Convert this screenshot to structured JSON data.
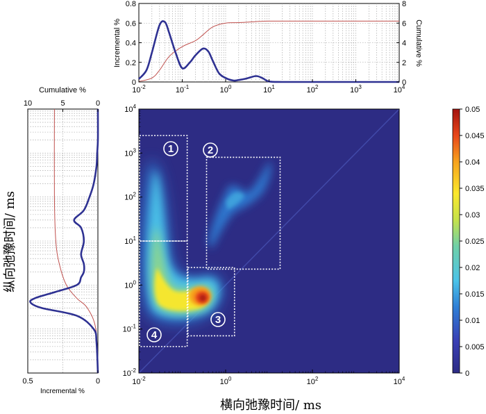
{
  "chart_data": {
    "type": "heatmap",
    "xlabel": "横向弛豫时间/ ms",
    "ylabel": "纵向弛豫时间/ ms",
    "x_scale": "log",
    "y_scale": "log",
    "xlim": [
      0.01,
      10000
    ],
    "ylim": [
      0.01,
      10000
    ],
    "x_ticks": [
      "10^-2",
      "10^0",
      "10^2",
      "10^4"
    ],
    "y_ticks": [
      "10^-2",
      "10^-1",
      "10^0",
      "10^1",
      "10^2",
      "10^3",
      "10^4"
    ],
    "colorbar": {
      "min": 0,
      "max": 0.05,
      "ticks": [
        "0",
        "0.005",
        "0.01",
        "0.015",
        "0.02",
        "0.025",
        "0.03",
        "0.035",
        "0.04",
        "0.045",
        "0.05"
      ]
    },
    "regions": [
      {
        "label": "1",
        "x_range": [
          0.01,
          0.13
        ],
        "y_range": [
          10,
          2500
        ]
      },
      {
        "label": "2",
        "x_range": [
          0.35,
          18
        ],
        "y_range": [
          2.3,
          800
        ]
      },
      {
        "label": "3",
        "x_range": [
          0.13,
          1.6
        ],
        "y_range": [
          0.07,
          2.5
        ]
      },
      {
        "label": "4",
        "x_range": [
          0.01,
          0.13
        ],
        "y_range": [
          0.04,
          10
        ]
      }
    ],
    "top_panel": {
      "xlim": [
        0.01,
        10000
      ],
      "x_ticks": [
        "10^-2",
        "10^-1",
        "10^0",
        "10^1",
        "10^2",
        "10^3",
        "10^4"
      ],
      "ylabel_left": "Incremental %",
      "ylim_left": [
        0,
        0.8
      ],
      "y_ticks_left": [
        "0",
        "0.2",
        "0.4",
        "0.6",
        "0.8"
      ],
      "ylabel_right": "Cumulative %",
      "ylim_right": [
        0,
        8
      ],
      "y_ticks_right": [
        "0",
        "2",
        "4",
        "6",
        "8"
      ],
      "incremental": {
        "x": [
          0.01,
          0.015,
          0.02,
          0.03,
          0.04,
          0.05,
          0.07,
          0.1,
          0.15,
          0.2,
          0.3,
          0.4,
          0.5,
          0.7,
          1,
          1.5,
          2,
          3,
          5,
          7,
          10,
          20,
          100,
          1000,
          10000
        ],
        "y": [
          0.03,
          0.12,
          0.3,
          0.58,
          0.61,
          0.5,
          0.3,
          0.14,
          0.2,
          0.27,
          0.34,
          0.31,
          0.22,
          0.09,
          0.04,
          0.015,
          0.02,
          0.035,
          0.06,
          0.04,
          0.005,
          0,
          0,
          0,
          0
        ]
      },
      "cumulative": {
        "x": [
          0.01,
          0.02,
          0.03,
          0.05,
          0.1,
          0.2,
          0.3,
          0.5,
          1,
          2,
          5,
          10,
          100,
          10000
        ],
        "y": [
          0.05,
          0.4,
          1.2,
          2.6,
          3.6,
          4.2,
          4.8,
          5.6,
          6.0,
          6.05,
          6.15,
          6.2,
          6.2,
          6.2
        ]
      }
    },
    "left_panel": {
      "ylim": [
        0.01,
        10000
      ],
      "xlabel_bottom": "Incremental %",
      "xlim_bottom": [
        0.5,
        0
      ],
      "x_ticks_bottom": [
        "0.5",
        "0"
      ],
      "xlabel_top": "Cumulative %",
      "xlim_top": [
        10,
        0
      ],
      "x_ticks_top": [
        "10",
        "5",
        "0"
      ],
      "incremental": {
        "y": [
          0.01,
          0.05,
          0.1,
          0.2,
          0.3,
          0.4,
          0.5,
          0.7,
          1,
          1.5,
          2,
          3,
          5,
          10,
          20,
          30,
          50,
          100,
          200,
          500,
          1000,
          2000,
          10000
        ],
        "x": [
          0,
          0.01,
          0.03,
          0.15,
          0.4,
          0.48,
          0.45,
          0.3,
          0.15,
          0.12,
          0.1,
          0.1,
          0.12,
          0.1,
          0.12,
          0.17,
          0.1,
          0.06,
          0.03,
          0.01,
          0.005,
          0,
          0
        ]
      },
      "cumulative": {
        "y": [
          0.01,
          0.1,
          0.3,
          0.5,
          1,
          3,
          10,
          100,
          10000
        ],
        "x": [
          0.05,
          0.3,
          1.5,
          3.0,
          4.5,
          5.5,
          6.0,
          6.2,
          6.2
        ]
      }
    },
    "colors": {
      "background": "#2d2c84",
      "incremental_line": "#2e3192",
      "cumulative_line": "#c0504d"
    }
  }
}
